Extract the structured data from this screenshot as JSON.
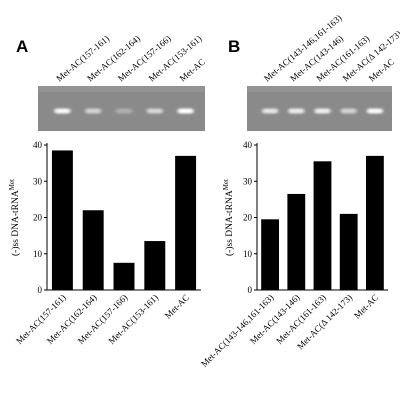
{
  "figure": {
    "panels": [
      "A",
      "B"
    ]
  },
  "chart_data": [
    {
      "type": "bar",
      "panel": "A",
      "categories": [
        "Met-AC(157-161)",
        "Met-AC(162-164)",
        "Met-AC(157-166)",
        "Met-AC(153-161)",
        "Met-AC"
      ],
      "values": [
        38.5,
        22,
        7.5,
        13.5,
        37
      ],
      "ylabel_prefix": "(-)ss DNA-tRNA",
      "ylabel_sup": "Met",
      "ylim": [
        0,
        40
      ],
      "yticks": [
        0,
        10,
        20,
        30,
        40
      ],
      "grid": false,
      "gel_lanes": [
        "Met-AC(157-161)",
        "Met-AC(162-164)",
        "Met-AC(157-166)",
        "Met-AC(153-161)",
        "Met-AC"
      ],
      "band_intensity": [
        0.95,
        0.55,
        0.2,
        0.6,
        1.0
      ]
    },
    {
      "type": "bar",
      "panel": "B",
      "categories": [
        "Met-AC(143-146,161-163)",
        "Met-AC(143-146)",
        "Met-AC(161-163)",
        "Met-AC(Δ 142-173)",
        "Met-AC"
      ],
      "values": [
        19.5,
        26.5,
        35.5,
        21,
        37
      ],
      "ylabel_prefix": "(-)ss DNA-tRNA",
      "ylabel_sup": "Met",
      "ylim": [
        0,
        40
      ],
      "yticks": [
        0,
        10,
        20,
        30,
        40
      ],
      "grid": false,
      "gel_lanes": [
        "Met-AC(143-146,161-163)",
        "Met-AC(143-146)",
        "Met-AC(161-163)",
        "Met-AC(Δ 142-173)",
        "Met-AC"
      ],
      "band_intensity": [
        0.75,
        0.8,
        0.85,
        0.55,
        0.95
      ]
    }
  ]
}
